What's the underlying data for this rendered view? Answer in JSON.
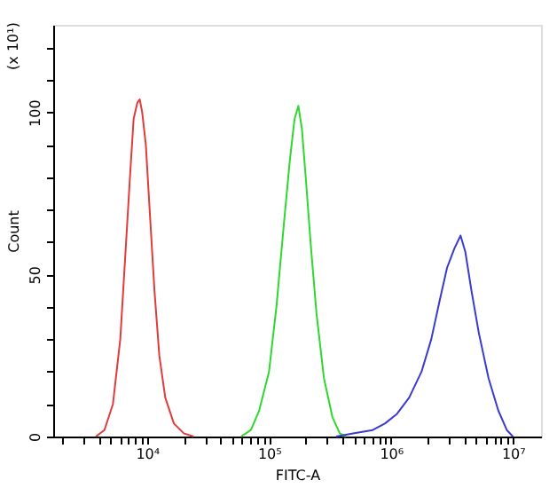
{
  "chart_data": {
    "type": "line",
    "xlabel": "FITC-A",
    "ylabel": "Count",
    "annotations": [
      "(x 10¹)"
    ],
    "log": "x",
    "xlim": [
      1700,
      17000000
    ],
    "ylim": [
      0,
      127
    ],
    "xticks": [
      {
        "value": 2000,
        "label": null
      },
      {
        "value": 3000,
        "label": null
      },
      {
        "value": 4000,
        "label": null
      },
      {
        "value": 5000,
        "label": null
      },
      {
        "value": 6000,
        "label": null
      },
      {
        "value": 7000,
        "label": null
      },
      {
        "value": 8000,
        "label": null
      },
      {
        "value": 9000,
        "label": null
      },
      {
        "value": 10000,
        "label": "10⁴"
      },
      {
        "value": 20000,
        "label": null
      },
      {
        "value": 30000,
        "label": null
      },
      {
        "value": 40000,
        "label": null
      },
      {
        "value": 50000,
        "label": null
      },
      {
        "value": 60000,
        "label": null
      },
      {
        "value": 70000,
        "label": null
      },
      {
        "value": 80000,
        "label": null
      },
      {
        "value": 90000,
        "label": null
      },
      {
        "value": 100000,
        "label": "10⁵"
      },
      {
        "value": 200000,
        "label": null
      },
      {
        "value": 300000,
        "label": null
      },
      {
        "value": 400000,
        "label": null
      },
      {
        "value": 500000,
        "label": null
      },
      {
        "value": 600000,
        "label": null
      },
      {
        "value": 700000,
        "label": null
      },
      {
        "value": 800000,
        "label": null
      },
      {
        "value": 900000,
        "label": null
      },
      {
        "value": 1000000,
        "label": "10⁶"
      },
      {
        "value": 2000000,
        "label": null
      },
      {
        "value": 3000000,
        "label": null
      },
      {
        "value": 4000000,
        "label": null
      },
      {
        "value": 5000000,
        "label": null
      },
      {
        "value": 6000000,
        "label": null
      },
      {
        "value": 7000000,
        "label": null
      },
      {
        "value": 8000000,
        "label": null
      },
      {
        "value": 9000000,
        "label": null
      },
      {
        "value": 10000000,
        "label": "10⁷"
      }
    ],
    "yticks": [
      0,
      {
        "value": 10,
        "label": null
      },
      {
        "value": 20,
        "label": null
      },
      {
        "value": 30,
        "label": null
      },
      {
        "value": 40,
        "label": null
      },
      50,
      {
        "value": 60,
        "label": null
      },
      {
        "value": 70,
        "label": null
      },
      {
        "value": 80,
        "label": null
      },
      {
        "value": 90,
        "label": null
      },
      100,
      {
        "value": 110,
        "label": null
      },
      {
        "value": 120,
        "label": null
      }
    ],
    "series": [
      {
        "color": "#e03c3c",
        "x": [
          3800,
          4470,
          5250,
          6030,
          6610,
          7240,
          7760,
          8320,
          8710,
          9120,
          9770,
          10500,
          11500,
          12600,
          14100,
          16600,
          20000,
          24000
        ],
        "values": [
          0,
          2,
          10,
          30,
          55,
          80,
          98,
          103,
          104,
          100,
          90,
          70,
          45,
          25,
          12,
          4,
          1,
          0
        ]
      },
      {
        "color": "#2ed82e",
        "x": [
          59000,
          71000,
          83000,
          100000,
          115000,
          132000,
          148000,
          162000,
          174000,
          186000,
          200000,
          219000,
          245000,
          282000,
          331000,
          380000,
          427000
        ],
        "values": [
          0,
          2,
          8,
          20,
          40,
          65,
          85,
          98,
          102,
          95,
          80,
          60,
          38,
          18,
          6,
          1,
          0
        ]
      },
      {
        "color": "#3a3ad0",
        "x": [
          355000,
          500000,
          708000,
          891000,
          1120000,
          1410000,
          1780000,
          2140000,
          2510000,
          2880000,
          3310000,
          3720000,
          4070000,
          4570000,
          5250000,
          6310000,
          7590000,
          8910000,
          10000000
        ],
        "values": [
          0,
          1,
          2,
          4,
          7,
          12,
          20,
          30,
          42,
          52,
          58,
          62,
          57,
          45,
          32,
          18,
          8,
          2,
          0
        ]
      }
    ]
  }
}
